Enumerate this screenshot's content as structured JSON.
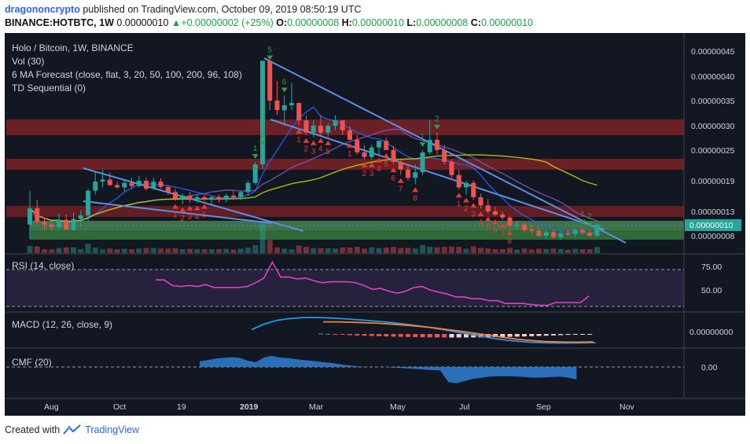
{
  "header": {
    "publisher": "dragononcrypto",
    "published_text": "published on TradingView.com, October 09, 2019 08:50:19 UTC",
    "symbol": "BINANCE:HOTBTC, 1W",
    "last": "0.00000010",
    "change": "+0.00000002 (+25%)",
    "o_label": "O:",
    "o_value": "0.00000008",
    "h_label": "H:",
    "h_value": "0.00000010",
    "l_label": "L:",
    "l_value": "0.00000008",
    "c_label": "C:",
    "c_value": "0.00000010"
  },
  "legend": {
    "title": "Holo / Bitcoin, 1W, BINANCE",
    "vol": "Vol (30)",
    "ma": "6 MA Forecast (close, flat, 3, 20, 50, 100, 200, 96, 108)",
    "td": "TD Sequential (0)",
    "rsi": "RSI (14, close)",
    "macd": "MACD (12, 26, close, 9)",
    "cmf": "CMF (20)"
  },
  "footer": {
    "created_with": "Created with",
    "brand": "TradingView"
  },
  "colors": {
    "bg": "#131722",
    "up": "#26a69a",
    "down": "#ef5350",
    "bear_td": "#e53935",
    "bull_td": "#2e9e3e",
    "rsi": "#e040c8",
    "macd": "#2196f3",
    "signal": "#ff7f2a",
    "cmf": "#2f7fd6"
  },
  "chart_data": {
    "type": "candlestick",
    "price_axis_ticks": [
      "0.00000045",
      "0.00000040",
      "0.00000035",
      "0.00000030",
      "0.00000025",
      "0.00000019",
      "0.00000013",
      "0.00000008"
    ],
    "current_price_label": "0.00000010",
    "time_axis_ticks": [
      "Aug",
      "Oct",
      "19",
      "2019",
      "Mar",
      "May",
      "Jul",
      "Sep",
      "Nov"
    ],
    "rsi_ticks": [
      "75.00",
      "50.00"
    ],
    "macd_ticks": [
      "0.00000000"
    ],
    "cmf_ticks": [
      "0.00"
    ],
    "candles_ohlc": [
      [
        1e-07,
        1.67e-07,
        7.5e-08,
        1.35e-07
      ],
      [
        1.35e-07,
        1.5e-07,
        1e-07,
        1.05e-07
      ],
      [
        1.05e-07,
        1.15e-07,
        9e-08,
        1e-07
      ],
      [
        1e-07,
        1.08e-07,
        9e-08,
        9.5e-08
      ],
      [
        9.5e-08,
        1.25e-07,
        8.8e-08,
        1.1e-07
      ],
      [
        1.1e-07,
        1.22e-07,
        9e-08,
        9e-08
      ],
      [
        9e-08,
        1.27e-07,
        8.8e-08,
        1.12e-07
      ],
      [
        1.12e-07,
        1.32e-07,
        9.5e-08,
        1.2e-07
      ],
      [
        1.2e-07,
        1.72e-07,
        1.05e-07,
        1.68e-07
      ],
      [
        1.68e-07,
        2.05e-07,
        1.6e-07,
        1.88e-07
      ],
      [
        1.88e-07,
        2.1e-07,
        1.75e-07,
        1.92e-07
      ],
      [
        1.92e-07,
        2.05e-07,
        1.78e-07,
        1.8e-07
      ],
      [
        1.8e-07,
        1.88e-07,
        1.72e-07,
        1.75e-07
      ],
      [
        1.75e-07,
        1.92e-07,
        1.65e-07,
        1.85e-07
      ],
      [
        1.85e-07,
        1.95e-07,
        1.72e-07,
        1.78e-07
      ],
      [
        1.78e-07,
        1.98e-07,
        1.75e-07,
        1.9e-07
      ],
      [
        1.9e-07,
        1.96e-07,
        1.68e-07,
        1.72e-07
      ],
      [
        1.72e-07,
        1.96e-07,
        1.7e-07,
        1.88e-07
      ],
      [
        1.88e-07,
        1.94e-07,
        1.72e-07,
        1.76e-07
      ],
      [
        1.76e-07,
        1.8e-07,
        1.6e-07,
        1.65e-07
      ],
      [
        1.65e-07,
        1.72e-07,
        1.48e-07,
        1.52e-07
      ],
      [
        1.52e-07,
        1.62e-07,
        1.42e-07,
        1.58e-07
      ],
      [
        1.58e-07,
        1.65e-07,
        1.45e-07,
        1.5e-07
      ],
      [
        1.5e-07,
        1.6e-07,
        1.45e-07,
        1.55e-07
      ],
      [
        1.55e-07,
        1.6e-07,
        1.48e-07,
        1.5e-07
      ],
      [
        1.5e-07,
        1.57e-07,
        1.42e-07,
        1.55e-07
      ],
      [
        1.55e-07,
        1.6e-07,
        1.45e-07,
        1.5e-07
      ],
      [
        1.5e-07,
        1.62e-07,
        1.45e-07,
        1.58e-07
      ],
      [
        1.58e-07,
        1.68e-07,
        1.5e-07,
        1.55e-07
      ],
      [
        1.55e-07,
        1.68e-07,
        1.5e-07,
        1.65e-07
      ],
      [
        1.65e-07,
        1.9e-07,
        1.58e-07,
        1.85e-07
      ],
      [
        1.85e-07,
        2.25e-07,
        1.8e-07,
        2.2e-07
      ],
      [
        2.2e-07,
        4.55e-07,
        2.1e-07,
        4.3e-07
      ],
      [
        4.3e-07,
        4.25e-07,
        3.3e-07,
        3.5e-07
      ],
      [
        3.5e-07,
        3.9e-07,
        3.2e-07,
        3.3e-07
      ],
      [
        3.3e-07,
        3.6e-07,
        3e-07,
        3.4e-07
      ],
      [
        3.4e-07,
        3.85e-07,
        3.3e-07,
        3.45e-07
      ],
      [
        3.45e-07,
        3.4e-07,
        3e-07,
        3.1e-07
      ],
      [
        3.1e-07,
        3.2e-07,
        2.8e-07,
        2.85e-07
      ],
      [
        2.85e-07,
        3.1e-07,
        2.75e-07,
        3e-07
      ],
      [
        3e-07,
        3.2e-07,
        2.8e-07,
        2.85e-07
      ],
      [
        2.85e-07,
        3.05e-07,
        2.75e-07,
        3e-07
      ],
      [
        3e-07,
        3.2e-07,
        2.9e-07,
        3.1e-07
      ],
      [
        3.1e-07,
        3.1e-07,
        2.8e-07,
        2.9e-07
      ],
      [
        2.9e-07,
        3e-07,
        2.7e-07,
        2.7e-07
      ],
      [
        2.7e-07,
        2.8e-07,
        2.4e-07,
        2.45e-07
      ],
      [
        2.45e-07,
        2.6e-07,
        2.3e-07,
        2.35e-07
      ],
      [
        2.35e-07,
        2.6e-07,
        2.3e-07,
        2.55e-07
      ],
      [
        2.55e-07,
        2.68e-07,
        2.4e-07,
        2.68e-07
      ],
      [
        2.68e-07,
        2.75e-07,
        2.5e-07,
        2.5e-07
      ],
      [
        2.5e-07,
        2.58e-07,
        2.2e-07,
        2.25e-07
      ],
      [
        2.25e-07,
        2.3e-07,
        2e-07,
        2.1e-07
      ],
      [
        2.1e-07,
        2.2e-07,
        1.9e-07,
        1.95e-07
      ],
      [
        1.95e-07,
        2.2e-07,
        1.82e-07,
        2.05e-07
      ],
      [
        2.05e-07,
        2.5e-07,
        2e-07,
        2.45e-07
      ],
      [
        2.45e-07,
        3.1e-07,
        2.4e-07,
        2.7e-07
      ],
      [
        2.7e-07,
        2.85e-07,
        2.4e-07,
        2.5e-07
      ],
      [
        2.5e-07,
        2.6e-07,
        2.2e-07,
        2.25e-07
      ],
      [
        2.25e-07,
        2.3e-07,
        1.95e-07,
        2e-07
      ],
      [
        2e-07,
        2.1e-07,
        1.7e-07,
        1.75e-07
      ],
      [
        1.75e-07,
        1.9e-07,
        1.6e-07,
        1.85e-07
      ],
      [
        1.85e-07,
        1.9e-07,
        1.5e-07,
        1.55e-07
      ],
      [
        1.55e-07,
        1.62e-07,
        1.35e-07,
        1.4e-07
      ],
      [
        1.4e-07,
        1.52e-07,
        1.25e-07,
        1.3e-07
      ],
      [
        1.3e-07,
        1.38e-07,
        1.18e-07,
        1.22e-07
      ],
      [
        1.22e-07,
        1.3e-07,
        1.1e-07,
        1.15e-07
      ],
      [
        1.15e-07,
        1.18e-07,
        9.5e-08,
        9.8e-08
      ],
      [
        9.8e-08,
        1.08e-07,
        9e-08,
        1e-07
      ],
      [
        1e-07,
        1.05e-07,
        8.5e-08,
        9e-08
      ],
      [
        9e-08,
        1e-07,
        8.2e-08,
        8.8e-08
      ],
      [
        8.8e-08,
        9.4e-08,
        7.8e-08,
        8e-08
      ],
      [
        8e-08,
        9e-08,
        7.6e-08,
        8.6e-08
      ],
      [
        8.6e-08,
        9e-08,
        7.5e-08,
        7.8e-08
      ],
      [
        7.8e-08,
        8.8e-08,
        7.4e-08,
        8.4e-08
      ],
      [
        8.4e-08,
        9e-08,
        8e-08,
        8.3e-08
      ],
      [
        8.3e-08,
        9.2e-08,
        7.8e-08,
        9e-08
      ],
      [
        9e-08,
        9.4e-08,
        8.2e-08,
        8.5e-08
      ],
      [
        8.5e-08,
        9e-08,
        7.8e-08,
        8e-08
      ],
      [
        8e-08,
        1e-07,
        7.8e-08,
        1e-07
      ]
    ],
    "td_sell_counts": [
      {
        "i": 31,
        "label": "1"
      },
      {
        "i": 32,
        "label": "3"
      },
      {
        "i": 33,
        "label": "5"
      },
      {
        "i": 35,
        "label": "6"
      },
      {
        "i": 54,
        "label": "1"
      },
      {
        "i": 56,
        "label": "2"
      },
      {
        "i": 76,
        "label": "1"
      },
      {
        "i": 77,
        "label": "2"
      }
    ],
    "td_buy_counts": [
      {
        "i": 20,
        "label": "1"
      },
      {
        "i": 21,
        "label": "2"
      },
      {
        "i": 22,
        "label": "3"
      },
      {
        "i": 23,
        "label": "4"
      },
      {
        "i": 24,
        "label": "5"
      },
      {
        "i": 37,
        "label": "1"
      },
      {
        "i": 38,
        "label": "2"
      },
      {
        "i": 39,
        "label": "3"
      },
      {
        "i": 40,
        "label": "4"
      },
      {
        "i": 41,
        "label": "5"
      },
      {
        "i": 44,
        "label": "1"
      },
      {
        "i": 46,
        "label": "2"
      },
      {
        "i": 47,
        "label": "3"
      },
      {
        "i": 48,
        "label": "4"
      },
      {
        "i": 49,
        "label": "5"
      },
      {
        "i": 50,
        "label": "6"
      },
      {
        "i": 51,
        "label": "7"
      },
      {
        "i": 53,
        "label": "8"
      },
      {
        "i": 59,
        "label": "1"
      },
      {
        "i": 60,
        "label": "2"
      },
      {
        "i": 61,
        "label": "3"
      },
      {
        "i": 62,
        "label": "4"
      },
      {
        "i": 63,
        "label": "5"
      },
      {
        "i": 64,
        "label": "6"
      },
      {
        "i": 65,
        "label": "7"
      },
      {
        "i": 66,
        "label": "8"
      }
    ],
    "rsi": [
      64,
      64,
      58,
      57,
      58,
      57,
      59,
      56,
      56,
      56,
      56,
      57,
      61,
      66,
      83,
      67,
      67,
      65,
      66,
      63,
      61,
      62,
      62,
      62,
      61,
      58,
      54,
      55,
      52,
      50,
      52,
      56,
      57,
      53,
      51,
      49,
      46,
      46,
      44,
      44,
      42,
      42,
      39,
      39,
      39,
      38,
      37,
      37,
      40,
      40,
      40,
      40,
      47
    ],
    "macd_line": [
      0.2,
      0.45,
      0.62,
      0.7,
      0.74,
      0.75,
      0.73,
      0.7,
      0.66,
      0.62,
      0.57,
      0.52,
      0.45,
      0.38,
      0.3,
      0.2,
      0.1,
      0.0,
      -0.1,
      -0.2,
      -0.28,
      -0.34,
      -0.38,
      -0.4,
      -0.41,
      -0.41,
      -0.4,
      -0.39
    ],
    "macd_signal": [
      0.55,
      0.55,
      0.54,
      0.52,
      0.5,
      0.47,
      0.43,
      0.39,
      0.34,
      0.28,
      0.21,
      0.14,
      0.06,
      -0.02,
      -0.1,
      -0.18,
      -0.25,
      -0.3,
      -0.34,
      -0.36,
      -0.37,
      -0.37,
      -0.36
    ],
    "cmf": [
      0.18,
      0.22,
      0.27,
      0.29,
      0.31,
      0.29,
      0.2,
      0.15,
      0.3,
      0.36,
      0.3,
      0.28,
      0.25,
      0.22,
      0.2,
      0.17,
      0.14,
      0.11,
      0.07,
      0.04,
      0.02,
      0.0,
      0.0,
      0.0,
      -0.02,
      -0.03,
      -0.05,
      -0.06,
      -0.08,
      -0.1,
      -0.11,
      -0.48,
      -0.52,
      -0.45,
      -0.38,
      -0.35,
      -0.31,
      -0.3,
      -0.29,
      -0.3,
      -0.31,
      -0.33,
      -0.34,
      -0.33,
      -0.32,
      -0.31,
      -0.34,
      -0.4
    ]
  }
}
